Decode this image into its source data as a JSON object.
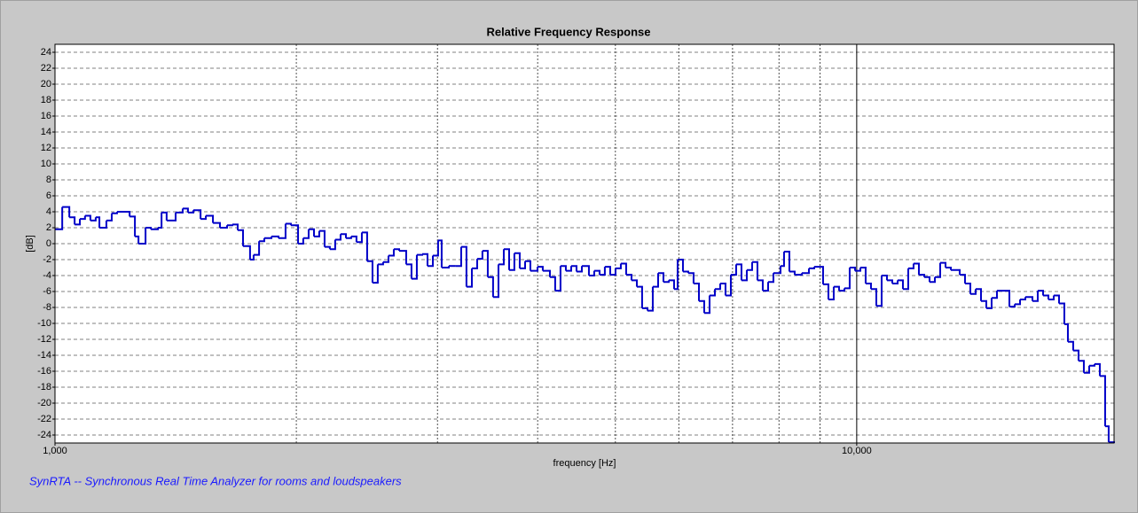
{
  "chart_data": {
    "type": "step",
    "title": "Relative Frequency Response",
    "xlabel": "frequency [Hz]",
    "ylabel": "[dB]",
    "footer": "SynRTA -- Synchronous Real Time Analyzer for rooms and loudspeakers",
    "color": "#0000c8",
    "xscale": "log",
    "grid": true,
    "xlim": [
      1000,
      20940
    ],
    "ylim": [
      -25,
      25
    ],
    "xticks": [
      {
        "value": 1000,
        "label": "1,000"
      },
      {
        "value": 10000,
        "label": "10,000"
      }
    ],
    "x_minor_ticks": [
      2000,
      3000,
      4000,
      5000,
      6000,
      7000,
      8000,
      9000
    ],
    "yticks": [
      -24,
      -22,
      -20,
      -18,
      -16,
      -14,
      -12,
      -10,
      -8,
      -6,
      -4,
      -2,
      0,
      2,
      4,
      6,
      8,
      10,
      12,
      14,
      16,
      18,
      20,
      22,
      24
    ],
    "x": [
      1000,
      1021,
      1042,
      1058,
      1074,
      1090,
      1107,
      1124,
      1136,
      1159,
      1177,
      1195,
      1239,
      1258,
      1271,
      1297,
      1317,
      1344,
      1358,
      1378,
      1414,
      1443,
      1465,
      1488,
      1519,
      1542,
      1574,
      1606,
      1639,
      1664,
      1690,
      1716,
      1751,
      1769,
      1797,
      1824,
      1862,
      1900,
      1939,
      1969,
      2010,
      2040,
      2072,
      2104,
      2136,
      2169,
      2202,
      2236,
      2271,
      2306,
      2341,
      2377,
      2414,
      2451,
      2489,
      2527,
      2566,
      2606,
      2646,
      2687,
      2742,
      2784,
      2827,
      2871,
      2915,
      2960,
      3005,
      3036,
      3099,
      3162,
      3211,
      3260,
      3311,
      3362,
      3413,
      3466,
      3519,
      3574,
      3629,
      3685,
      3741,
      3799,
      3858,
      3917,
      3998,
      4059,
      4143,
      4206,
      4271,
      4337,
      4404,
      4472,
      4541,
      4634,
      4705,
      4778,
      4851,
      4926,
      5002,
      5079,
      5157,
      5237,
      5318,
      5399,
      5483,
      5567,
      5653,
      5740,
      5828,
      5918,
      5979,
      6071,
      6164,
      6259,
      6356,
      6453,
      6553,
      6654,
      6756,
      6860,
      6966,
      7073,
      7182,
      7293,
      7405,
      7519,
      7635,
      7753,
      7872,
      8034,
      8116,
      8241,
      8368,
      8541,
      8717,
      8851,
      9079,
      9219,
      9361,
      9505,
      9652,
      9800,
      9951,
      10105,
      10260,
      10418,
      10579,
      10742,
      10907,
      11075,
      11246,
      11419,
      11595,
      11773,
      11955,
      12139,
      12326,
      12516,
      12709,
      12905,
      13103,
      13441,
      13648,
      13858,
      14072,
      14289,
      14509,
      14732,
      14959,
      15503,
      15741,
      15984,
      16230,
      16564,
      16819,
      17078,
      17341,
      17608,
      17879,
      18154,
      18340,
      18622,
      18909,
      19200,
      19496,
      19796,
      20101,
      20410,
      20619
    ],
    "values": [
      1.8,
      4.6,
      3.3,
      2.4,
      3.1,
      3.5,
      2.9,
      3.3,
      2.0,
      2.9,
      3.8,
      4.0,
      3.4,
      0.9,
      0,
      2.0,
      1.8,
      2.0,
      3.9,
      2.9,
      3.9,
      4.4,
      3.9,
      4.2,
      3.1,
      3.5,
      2.6,
      2.0,
      2.3,
      2.4,
      1.7,
      -0.3,
      -2.0,
      -1.4,
      0.3,
      0.7,
      0.9,
      0.7,
      2.5,
      2.3,
      0,
      0.7,
      1.8,
      0.9,
      1.6,
      -0.4,
      -0.7,
      0.5,
      1.2,
      0.7,
      0.9,
      0.2,
      1.4,
      -2.2,
      -4.9,
      -2.6,
      -2.3,
      -1.5,
      -0.7,
      -0.9,
      -2.6,
      -4.4,
      -1.4,
      -1.3,
      -2.8,
      -1.5,
      0.4,
      -3.0,
      -2.8,
      -2.8,
      -0.4,
      -5.4,
      -3.1,
      -1.9,
      -0.9,
      -4.2,
      -6.7,
      -2.6,
      -0.7,
      -3.3,
      -1.2,
      -3.1,
      -2.2,
      -3.4,
      -2.9,
      -3.4,
      -4.2,
      -5.9,
      -2.8,
      -3.4,
      -2.8,
      -3.5,
      -2.8,
      -4.0,
      -3.4,
      -3.9,
      -2.9,
      -3.9,
      -3.1,
      -2.5,
      -3.9,
      -4.6,
      -5.4,
      -8.1,
      -8.4,
      -5.4,
      -3.7,
      -4.8,
      -4.6,
      -5.7,
      -2.0,
      -3.5,
      -3.7,
      -5.0,
      -7.2,
      -8.7,
      -6.5,
      -5.7,
      -5.0,
      -6.5,
      -3.9,
      -2.6,
      -4.6,
      -3.3,
      -2.3,
      -4.6,
      -5.9,
      -4.8,
      -3.7,
      -2.8,
      -1.0,
      -3.5,
      -3.9,
      -3.7,
      -3.1,
      -2.9,
      -5.1,
      -7.0,
      -5.4,
      -5.9,
      -5.6,
      -3.0,
      -3.4,
      -3.0,
      -5.0,
      -5.7,
      -7.8,
      -4.0,
      -4.6,
      -5.0,
      -4.6,
      -5.7,
      -3.1,
      -2.5,
      -3.9,
      -4.2,
      -4.8,
      -4.2,
      -2.4,
      -3.0,
      -3.3,
      -3.9,
      -5.0,
      -6.3,
      -5.7,
      -7.2,
      -8.1,
      -6.8,
      -5.9,
      -7.9,
      -7.6,
      -7.0,
      -6.7,
      -7.2,
      -5.9,
      -6.5,
      -7.0,
      -6.5,
      -7.5,
      -10.1,
      -12.3,
      -13.4,
      -14.7,
      -16.2,
      -15.3,
      -15.1,
      -16.6,
      -22.9,
      -24.9
    ]
  }
}
